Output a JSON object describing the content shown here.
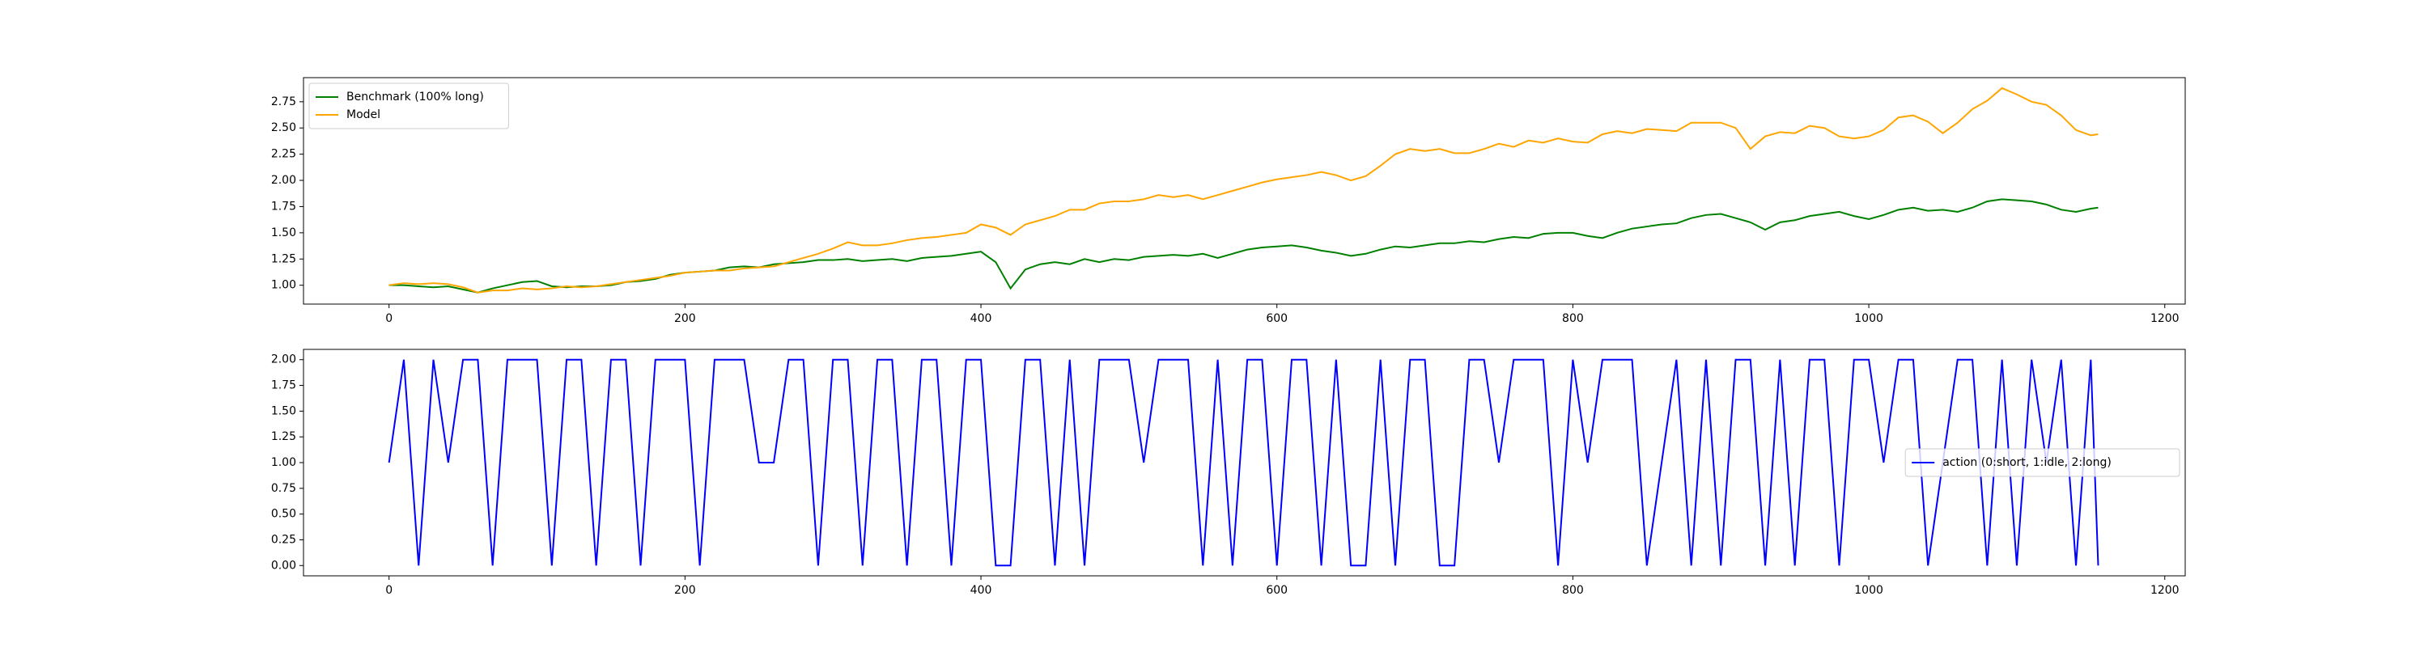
{
  "chart_data": [
    {
      "type": "line",
      "legend": "upper left",
      "x": [
        0,
        10,
        20,
        30,
        40,
        50,
        60,
        70,
        80,
        90,
        100,
        110,
        120,
        130,
        140,
        150,
        160,
        170,
        180,
        190,
        200,
        210,
        220,
        230,
        240,
        250,
        260,
        270,
        280,
        290,
        300,
        310,
        320,
        330,
        340,
        350,
        360,
        370,
        380,
        390,
        400,
        410,
        420,
        430,
        440,
        450,
        460,
        470,
        480,
        490,
        500,
        510,
        520,
        530,
        540,
        550,
        560,
        570,
        580,
        590,
        600,
        610,
        620,
        630,
        640,
        650,
        660,
        670,
        680,
        690,
        700,
        710,
        720,
        730,
        740,
        750,
        760,
        770,
        780,
        790,
        800,
        810,
        820,
        830,
        840,
        850,
        860,
        870,
        880,
        890,
        900,
        910,
        920,
        930,
        940,
        950,
        960,
        970,
        980,
        990,
        1000,
        1010,
        1020,
        1030,
        1040,
        1050,
        1060,
        1070,
        1080,
        1090,
        1100,
        1110,
        1120,
        1130,
        1140,
        1150,
        1155
      ],
      "series": [
        {
          "name": "Benchmark (100% long)",
          "color": "#008000",
          "values": [
            1.0,
            1.0,
            0.99,
            0.98,
            0.99,
            0.96,
            0.93,
            0.97,
            1.0,
            1.03,
            1.04,
            0.99,
            0.98,
            0.99,
            0.99,
            1.0,
            1.03,
            1.04,
            1.06,
            1.1,
            1.12,
            1.13,
            1.14,
            1.17,
            1.18,
            1.17,
            1.2,
            1.21,
            1.22,
            1.24,
            1.24,
            1.25,
            1.23,
            1.24,
            1.25,
            1.23,
            1.26,
            1.27,
            1.28,
            1.3,
            1.32,
            1.22,
            0.97,
            1.15,
            1.2,
            1.22,
            1.2,
            1.25,
            1.22,
            1.25,
            1.24,
            1.27,
            1.28,
            1.29,
            1.28,
            1.3,
            1.26,
            1.3,
            1.34,
            1.36,
            1.37,
            1.38,
            1.36,
            1.33,
            1.31,
            1.28,
            1.3,
            1.34,
            1.37,
            1.36,
            1.38,
            1.4,
            1.4,
            1.42,
            1.41,
            1.44,
            1.46,
            1.45,
            1.49,
            1.5,
            1.5,
            1.47,
            1.45,
            1.5,
            1.54,
            1.56,
            1.58,
            1.59,
            1.64,
            1.67,
            1.68,
            1.64,
            1.6,
            1.53,
            1.6,
            1.62,
            1.66,
            1.68,
            1.7,
            1.66,
            1.63,
            1.67,
            1.72,
            1.74,
            1.71,
            1.72,
            1.7,
            1.74,
            1.8,
            1.82,
            1.81,
            1.8,
            1.77,
            1.72,
            1.7,
            1.73,
            1.74
          ]
        },
        {
          "name": "Model",
          "color": "#ffa500",
          "values": [
            1.0,
            1.02,
            1.01,
            1.02,
            1.01,
            0.98,
            0.93,
            0.95,
            0.95,
            0.97,
            0.96,
            0.97,
            0.99,
            0.98,
            0.99,
            1.01,
            1.03,
            1.05,
            1.07,
            1.09,
            1.12,
            1.13,
            1.14,
            1.14,
            1.16,
            1.17,
            1.18,
            1.22,
            1.26,
            1.3,
            1.35,
            1.41,
            1.38,
            1.38,
            1.4,
            1.43,
            1.45,
            1.46,
            1.48,
            1.5,
            1.58,
            1.55,
            1.48,
            1.58,
            1.62,
            1.66,
            1.72,
            1.72,
            1.78,
            1.8,
            1.8,
            1.82,
            1.86,
            1.84,
            1.86,
            1.82,
            1.86,
            1.9,
            1.94,
            1.98,
            2.01,
            2.03,
            2.05,
            2.08,
            2.05,
            2.0,
            2.04,
            2.14,
            2.25,
            2.3,
            2.28,
            2.3,
            2.26,
            2.26,
            2.3,
            2.35,
            2.32,
            2.38,
            2.36,
            2.4,
            2.37,
            2.36,
            2.44,
            2.47,
            2.45,
            2.49,
            2.48,
            2.47,
            2.55,
            2.55,
            2.55,
            2.5,
            2.3,
            2.42,
            2.46,
            2.45,
            2.52,
            2.5,
            2.42,
            2.4,
            2.42,
            2.48,
            2.6,
            2.62,
            2.56,
            2.45,
            2.55,
            2.68,
            2.76,
            2.88,
            2.82,
            2.75,
            2.72,
            2.62,
            2.48,
            2.43,
            2.44
          ]
        }
      ],
      "xlim": [
        -57.8,
        1213.8
      ],
      "xticks": [
        0,
        200,
        400,
        600,
        800,
        1000,
        1200
      ],
      "ylim": [
        0.82,
        2.98
      ],
      "yticks": [
        {
          "value": 1,
          "label": "1.00"
        },
        {
          "value": 1.25,
          "label": "1.25"
        },
        {
          "value": 1.5,
          "label": "1.50"
        },
        {
          "value": 1.75,
          "label": "1.75"
        },
        {
          "value": 2,
          "label": "2.00"
        },
        {
          "value": 2.25,
          "label": "2.25"
        },
        {
          "value": 2.5,
          "label": "2.50"
        },
        {
          "value": 2.75,
          "label": "2.75"
        }
      ]
    },
    {
      "type": "line",
      "legend": "center right",
      "x": [
        0,
        10,
        20,
        30,
        40,
        50,
        60,
        70,
        80,
        90,
        100,
        110,
        120,
        130,
        140,
        150,
        160,
        170,
        180,
        190,
        200,
        210,
        220,
        230,
        240,
        250,
        260,
        270,
        280,
        290,
        300,
        310,
        320,
        330,
        340,
        350,
        360,
        370,
        380,
        390,
        400,
        410,
        420,
        430,
        440,
        450,
        460,
        470,
        480,
        490,
        500,
        510,
        520,
        530,
        540,
        550,
        560,
        570,
        580,
        590,
        600,
        610,
        620,
        630,
        640,
        650,
        660,
        670,
        680,
        690,
        700,
        710,
        720,
        730,
        740,
        750,
        760,
        770,
        780,
        790,
        800,
        810,
        820,
        830,
        840,
        850,
        860,
        870,
        880,
        890,
        900,
        910,
        920,
        930,
        940,
        950,
        960,
        970,
        980,
        990,
        1000,
        1010,
        1020,
        1030,
        1040,
        1050,
        1060,
        1070,
        1080,
        1090,
        1100,
        1110,
        1120,
        1130,
        1140,
        1150,
        1155
      ],
      "series": [
        {
          "name": "action (0:short, 1:idle, 2:long)",
          "color": "#0000ff",
          "values": [
            1,
            2,
            0,
            2,
            1,
            2,
            2,
            0,
            2,
            2,
            2,
            0,
            2,
            2,
            0,
            2,
            2,
            0,
            2,
            2,
            2,
            0,
            2,
            2,
            2,
            1,
            1,
            2,
            2,
            0,
            2,
            2,
            0,
            2,
            2,
            0,
            2,
            2,
            0,
            2,
            2,
            0,
            0,
            2,
            2,
            0,
            2,
            0,
            2,
            2,
            2,
            1,
            2,
            2,
            2,
            0,
            2,
            0,
            2,
            2,
            0,
            2,
            2,
            0,
            2,
            0,
            0,
            2,
            0,
            2,
            2,
            0,
            0,
            2,
            2,
            1,
            2,
            2,
            2,
            0,
            2,
            1,
            2,
            2,
            2,
            0,
            1,
            2,
            0,
            2,
            0,
            2,
            2,
            0,
            2,
            0,
            2,
            2,
            0,
            2,
            2,
            1,
            2,
            2,
            0,
            1,
            2,
            2,
            0,
            2,
            0,
            2,
            1,
            2,
            0,
            2,
            0
          ]
        }
      ],
      "xlim": [
        -57.8,
        1213.8
      ],
      "xticks": [
        0,
        200,
        400,
        600,
        800,
        1000,
        1200
      ],
      "ylim": [
        -0.1,
        2.1
      ],
      "yticks": [
        {
          "value": 0,
          "label": "0.00"
        },
        {
          "value": 0.25,
          "label": "0.25"
        },
        {
          "value": 0.5,
          "label": "0.50"
        },
        {
          "value": 0.75,
          "label": "0.75"
        },
        {
          "value": 1,
          "label": "1.00"
        },
        {
          "value": 1.25,
          "label": "1.25"
        },
        {
          "value": 1.5,
          "label": "1.50"
        },
        {
          "value": 1.75,
          "label": "1.75"
        },
        {
          "value": 2,
          "label": "2.00"
        }
      ]
    }
  ]
}
